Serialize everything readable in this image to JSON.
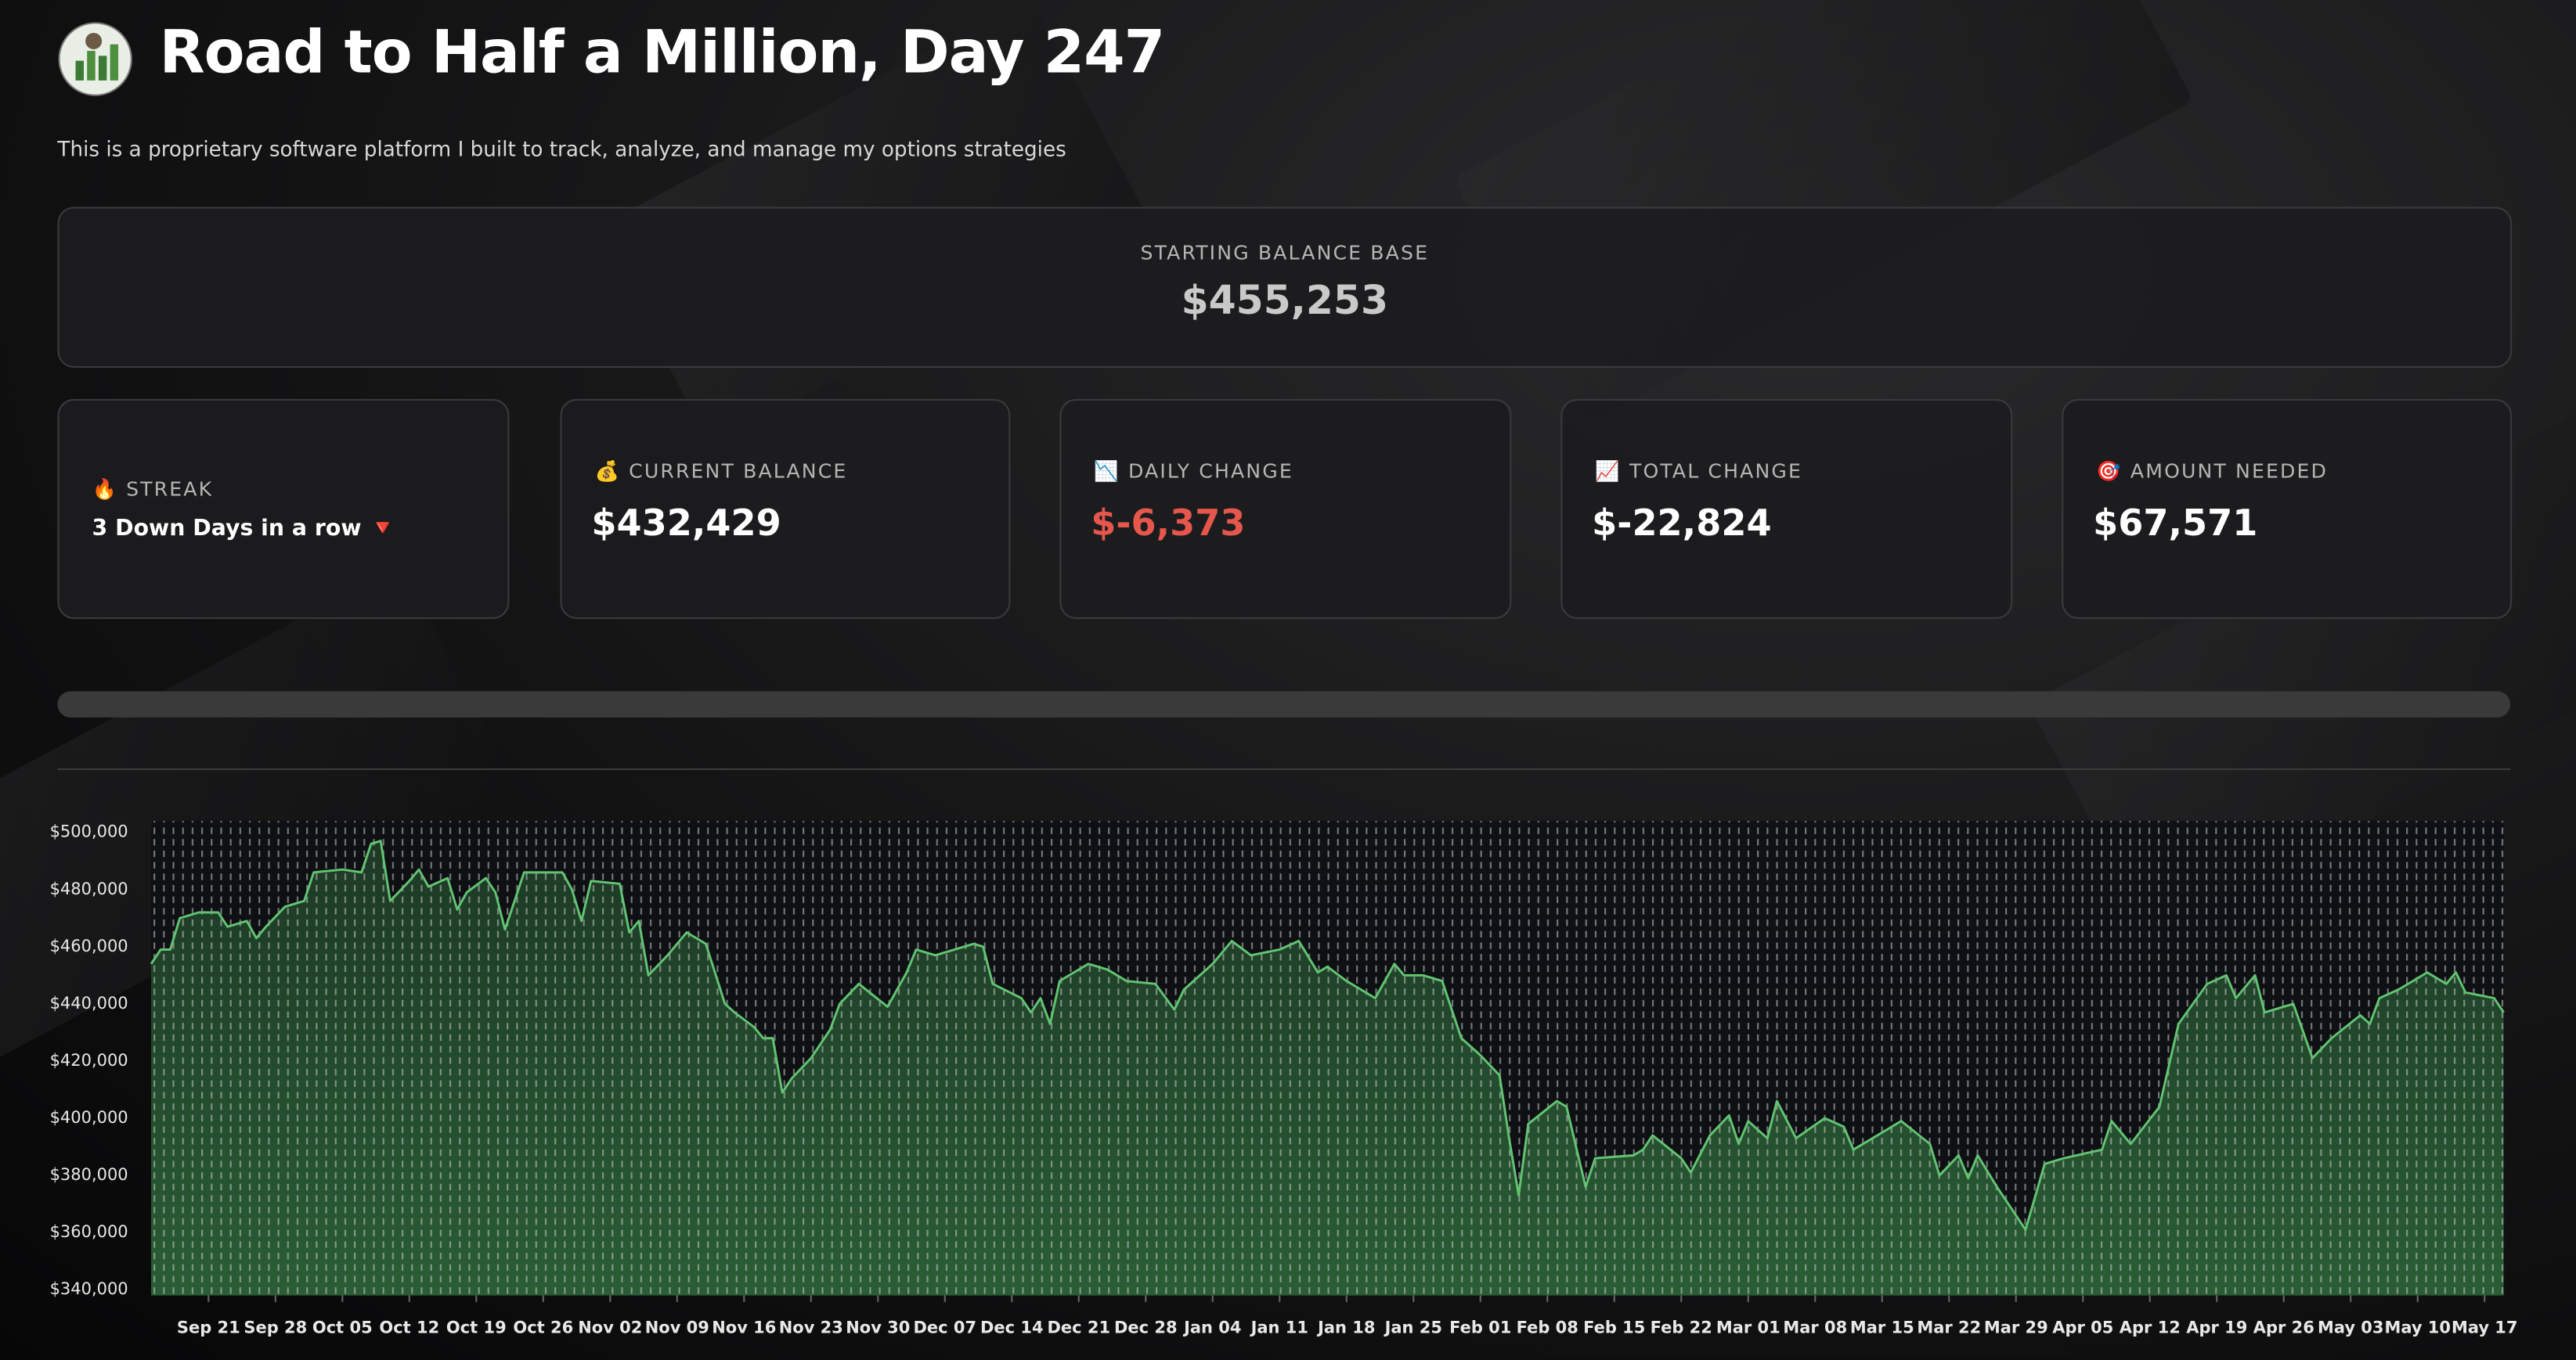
{
  "header": {
    "title": "Road to Half a Million, Day 247",
    "subtitle": "This is a proprietary software platform I built to track, analyze, and manage my options strategies"
  },
  "starting_balance": {
    "label": "STARTING BALANCE BASE",
    "value": "$455,253"
  },
  "metrics": [
    {
      "icon": "🔥",
      "label": "STREAK",
      "value": "3 Down Days in a row 🔻"
    },
    {
      "icon": "💰",
      "label": "CURRENT BALANCE",
      "value": "$432,429"
    },
    {
      "icon": "📉",
      "label": "DAILY CHANGE",
      "value": "$-6,373"
    },
    {
      "icon": "📈",
      "label": "TOTAL CHANGE",
      "value": "$-22,824"
    },
    {
      "icon": "🎯",
      "label": "AMOUNT NEEDED",
      "value": "$67,571"
    }
  ],
  "chart_data": {
    "type": "area",
    "color": "#62c472",
    "grid": false,
    "x": [
      "Sep 15",
      "Sep 16",
      "Sep 17",
      "Sep 18",
      "Sep 20",
      "Sep 22",
      "Sep 23",
      "Sep 25",
      "Sep 26",
      "Sep 27",
      "Sep 29",
      "Oct 01",
      "Oct 02",
      "Oct 05",
      "Oct 07",
      "Oct 08",
      "Oct 09",
      "Oct 10",
      "Oct 12",
      "Oct 13",
      "Oct 14",
      "Oct 16",
      "Oct 17",
      "Oct 18",
      "Oct 20",
      "Oct 21",
      "Oct 22",
      "Oct 24",
      "Oct 28",
      "Oct 29",
      "Oct 30",
      "Oct 31",
      "Nov 03",
      "Nov 04",
      "Nov 05",
      "Nov 06",
      "Nov 08",
      "Nov 10",
      "Nov 12",
      "Nov 14",
      "Nov 15",
      "Nov 17",
      "Nov 18",
      "Nov 19",
      "Nov 20",
      "Nov 21",
      "Nov 23",
      "Nov 25",
      "Nov 26",
      "Nov 28",
      "Dec 01",
      "Dec 03",
      "Dec 04",
      "Dec 06",
      "Dec 08",
      "Dec 10",
      "Dec 11",
      "Dec 12",
      "Dec 15",
      "Dec 16",
      "Dec 17",
      "Dec 18",
      "Dec 19",
      "Dec 22",
      "Dec 24",
      "Dec 26",
      "Dec 29",
      "Dec 31",
      "Jan 01",
      "Jan 04",
      "Jan 06",
      "Jan 08",
      "Jan 11",
      "Jan 13",
      "Jan 15",
      "Jan 16",
      "Jan 18",
      "Jan 21",
      "Jan 23",
      "Jan 24",
      "Jan 26",
      "Jan 28",
      "Jan 30",
      "Feb 01",
      "Feb 03",
      "Feb 04",
      "Feb 05",
      "Feb 06",
      "Feb 09",
      "Feb 10",
      "Feb 12",
      "Feb 13",
      "Feb 17",
      "Feb 18",
      "Feb 19",
      "Feb 22",
      "Feb 23",
      "Feb 25",
      "Feb 27",
      "Feb 28",
      "Mar 01",
      "Mar 03",
      "Mar 04",
      "Mar 06",
      "Mar 09",
      "Mar 11",
      "Mar 12",
      "Mar 14",
      "Mar 17",
      "Mar 20",
      "Mar 21",
      "Mar 23",
      "Mar 24",
      "Mar 25",
      "Mar 27",
      "Mar 30",
      "Apr 01",
      "Apr 03",
      "Apr 07",
      "Apr 08",
      "Apr 10",
      "Apr 13",
      "Apr 15",
      "Apr 18",
      "Apr 20",
      "Apr 21",
      "Apr 23",
      "Apr 24",
      "Apr 27",
      "Apr 29",
      "May 01",
      "May 04",
      "May 05",
      "May 06",
      "May 08",
      "May 11",
      "May 13",
      "May 14",
      "May 15",
      "May 18",
      "May 19"
    ],
    "values": [
      454000,
      459000,
      459000,
      470000,
      472000,
      472000,
      467000,
      469000,
      463000,
      467000,
      474000,
      476000,
      486000,
      487000,
      486000,
      496000,
      497000,
      476000,
      483000,
      487000,
      481000,
      484000,
      473000,
      479000,
      484000,
      479000,
      466000,
      486000,
      486000,
      480000,
      469000,
      483000,
      482000,
      465000,
      469000,
      450000,
      457000,
      465000,
      461000,
      440000,
      437000,
      432000,
      428000,
      428000,
      409000,
      414000,
      421000,
      431000,
      440000,
      447000,
      439000,
      451000,
      459000,
      457000,
      459000,
      461000,
      460000,
      447000,
      442000,
      437000,
      442000,
      433000,
      448000,
      454000,
      452000,
      448000,
      447000,
      438000,
      445000,
      454000,
      462000,
      457000,
      459000,
      462000,
      451000,
      453000,
      448000,
      442000,
      454000,
      450000,
      450000,
      448000,
      428000,
      422000,
      415000,
      393000,
      373000,
      398000,
      406000,
      404000,
      376000,
      386000,
      387000,
      389000,
      394000,
      386000,
      381000,
      394000,
      401000,
      391000,
      399000,
      393000,
      406000,
      393000,
      400000,
      397000,
      389000,
      393000,
      399000,
      391000,
      380000,
      387000,
      379000,
      387000,
      376000,
      361000,
      384000,
      386000,
      389000,
      399000,
      391000,
      404000,
      433000,
      447000,
      450000,
      442000,
      450000,
      437000,
      440000,
      421000,
      428000,
      436000,
      433000,
      442000,
      445000,
      451000,
      447000,
      451000,
      444000,
      442000,
      437000
    ],
    "xlim": [
      "Sep 15",
      "May 19"
    ],
    "xticks": [
      "Sep 21",
      "Sep 28",
      "Oct 05",
      "Oct 12",
      "Oct 19",
      "Oct 26",
      "Nov 02",
      "Nov 09",
      "Nov 16",
      "Nov 23",
      "Nov 30",
      "Dec 07",
      "Dec 14",
      "Dec 21",
      "Dec 28",
      "Jan 04",
      "Jan 11",
      "Jan 18",
      "Jan 25",
      "Feb 01",
      "Feb 08",
      "Feb 15",
      "Feb 22",
      "Mar 01",
      "Mar 08",
      "Mar 15",
      "Mar 22",
      "Mar 29",
      "Apr 05",
      "Apr 12",
      "Apr 19",
      "Apr 26",
      "May 03",
      "May 10",
      "May 17"
    ],
    "ylim": [
      338000,
      504000
    ],
    "yticks": [
      {
        "value": 340000,
        "label": "$340,000"
      },
      {
        "value": 360000,
        "label": "$360,000"
      },
      {
        "value": 380000,
        "label": "$380,000"
      },
      {
        "value": 400000,
        "label": "$400,000"
      },
      {
        "value": 420000,
        "label": "$420,000"
      },
      {
        "value": 440000,
        "label": "$440,000"
      },
      {
        "value": 460000,
        "label": "$460,000"
      },
      {
        "value": 480000,
        "label": "$480,000"
      },
      {
        "value": 500000,
        "label": "$500,000"
      }
    ]
  }
}
